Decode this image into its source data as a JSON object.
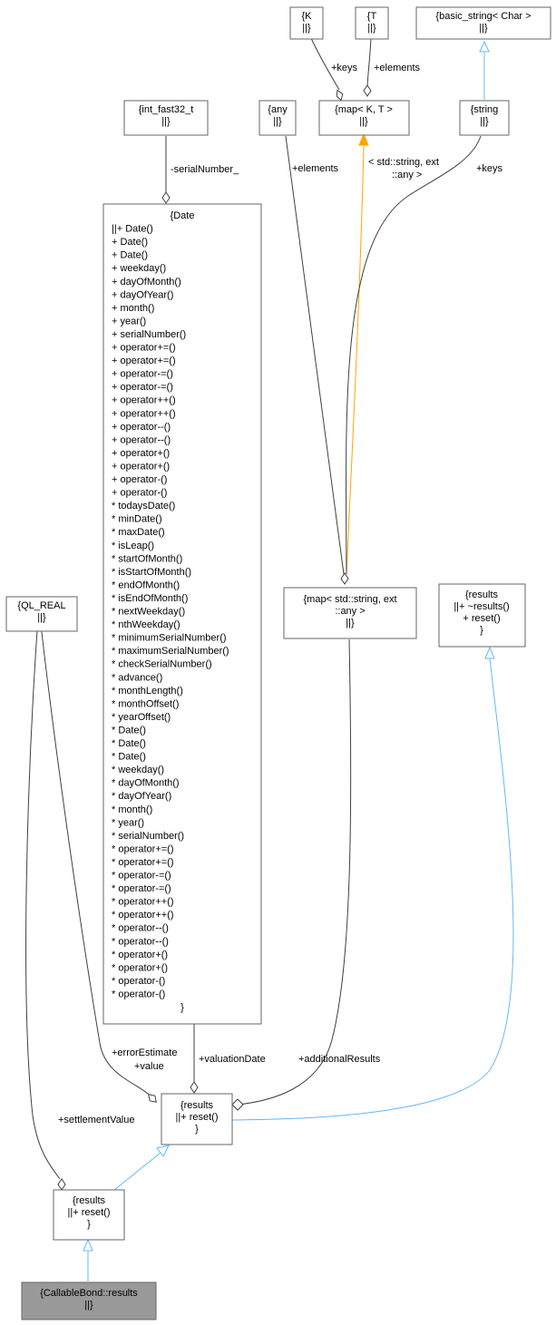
{
  "nodes": {
    "K": {
      "lines": [
        "{K",
        "||}"
      ]
    },
    "T": {
      "lines": [
        "{T",
        "||}"
      ]
    },
    "basic_string": {
      "lines": [
        "{basic_string< Char >",
        "||}"
      ]
    },
    "int_fast32": {
      "lines": [
        "{int_fast32_t",
        "||}"
      ]
    },
    "any": {
      "lines": [
        "{any",
        "||}"
      ]
    },
    "map_kt": {
      "lines": [
        "{map< K, T >",
        "||}"
      ]
    },
    "string": {
      "lines": [
        "{string",
        "||}"
      ]
    },
    "date": {
      "lines": [
        "{Date",
        "||+ Date()",
        "+ Date()",
        "+ Date()",
        "+ weekday()",
        "+ dayOfMonth()",
        "+ dayOfYear()",
        "+ month()",
        "+ year()",
        "+ serialNumber()",
        "+ operator+=()",
        "+ operator+=()",
        "+ operator-=()",
        "+ operator-=()",
        "+ operator++()",
        "+ operator++()",
        "+ operator--()",
        "+ operator--()",
        "+ operator+()",
        "+ operator+()",
        "+ operator-()",
        "+ operator-()",
        "* todaysDate()",
        "* minDate()",
        "* maxDate()",
        "* isLeap()",
        "* startOfMonth()",
        "* isStartOfMonth()",
        "* endOfMonth()",
        "* isEndOfMonth()",
        "* nextWeekday()",
        "* nthWeekday()",
        "* minimumSerialNumber()",
        "* maximumSerialNumber()",
        "* checkSerialNumber()",
        "* advance()",
        "* monthLength()",
        "* monthOffset()",
        "* yearOffset()",
        "* Date()",
        "* Date()",
        "* Date()",
        "* weekday()",
        "* dayOfMonth()",
        "* dayOfYear()",
        "* month()",
        "* year()",
        "* serialNumber()",
        "* operator+=()",
        "* operator+=()",
        "* operator-=()",
        "* operator-=()",
        "* operator++()",
        "* operator++()",
        "* operator--()",
        "* operator--()",
        "* operator+()",
        "* operator+()",
        "* operator-()",
        "* operator-()",
        "}"
      ]
    },
    "ql_real": {
      "lines": [
        "{QL_REAL",
        "||}"
      ]
    },
    "map_string_any": {
      "lines": [
        "{map< std::string, ext",
        "::any >",
        "||}"
      ]
    },
    "results_base": {
      "lines": [
        "{results",
        "||+ ~results()",
        "+ reset()",
        "}"
      ]
    },
    "results_mid": {
      "lines": [
        "{results",
        "||+ reset()",
        "}"
      ]
    },
    "results_bond": {
      "lines": [
        "{results",
        "||+ reset()",
        "}"
      ]
    },
    "callable": {
      "lines": [
        "{CallableBond::results",
        "||}"
      ]
    }
  },
  "edge_labels": {
    "keys_k": "+keys",
    "elements_t": "+elements",
    "serial": "-serialNumber_",
    "elements_any": "+elements",
    "template_arg_1": "< std::string, ext",
    "template_arg_2": "::any >",
    "keys_string": "+keys",
    "error_estimate": "+errorEstimate",
    "value": "+value",
    "valuation_date": "+valuationDate",
    "additional_results": "+additionalResults",
    "settlement_value": "+settlementValue"
  },
  "colors": {
    "inheritance": "#63b8ff",
    "template": "#ffa500",
    "composition": "#404040",
    "highlight_node": "#999999"
  }
}
